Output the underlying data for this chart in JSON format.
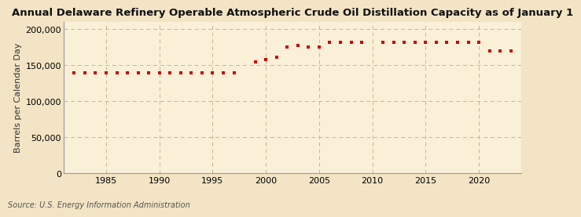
{
  "title": "Annual Delaware Refinery Operable Atmospheric Crude Oil Distillation Capacity as of January 1",
  "ylabel": "Barrels per Calendar Day",
  "source": "Source: U.S. Energy Information Administration",
  "background_color": "#f2e4c4",
  "plot_bg_color": "#faf0d8",
  "marker_color": "#cc0000",
  "years": [
    1982,
    1983,
    1984,
    1985,
    1986,
    1987,
    1988,
    1989,
    1990,
    1991,
    1992,
    1993,
    1994,
    1995,
    1996,
    1997,
    1999,
    2000,
    2001,
    2002,
    2003,
    2004,
    2005,
    2006,
    2007,
    2008,
    2009,
    2011,
    2012,
    2013,
    2014,
    2015,
    2016,
    2017,
    2018,
    2019,
    2020,
    2021,
    2022,
    2023
  ],
  "values": [
    139500,
    139500,
    139500,
    139500,
    139500,
    139500,
    139500,
    139500,
    139500,
    139500,
    139500,
    139500,
    139500,
    139500,
    139500,
    139500,
    155000,
    157500,
    161000,
    175000,
    178000,
    175000,
    175000,
    182000,
    182000,
    182000,
    182000,
    182000,
    182000,
    182000,
    182000,
    182000,
    182000,
    182000,
    182000,
    182000,
    182000,
    170000,
    170000,
    170000
  ],
  "xlim": [
    1981,
    2024
  ],
  "ylim": [
    0,
    210000
  ],
  "yticks": [
    0,
    50000,
    100000,
    150000,
    200000
  ],
  "xticks": [
    1985,
    1990,
    1995,
    2000,
    2005,
    2010,
    2015,
    2020
  ],
  "grid_color": "#c8b88a",
  "title_fontsize": 9.5,
  "label_fontsize": 8,
  "tick_fontsize": 8,
  "source_fontsize": 7
}
